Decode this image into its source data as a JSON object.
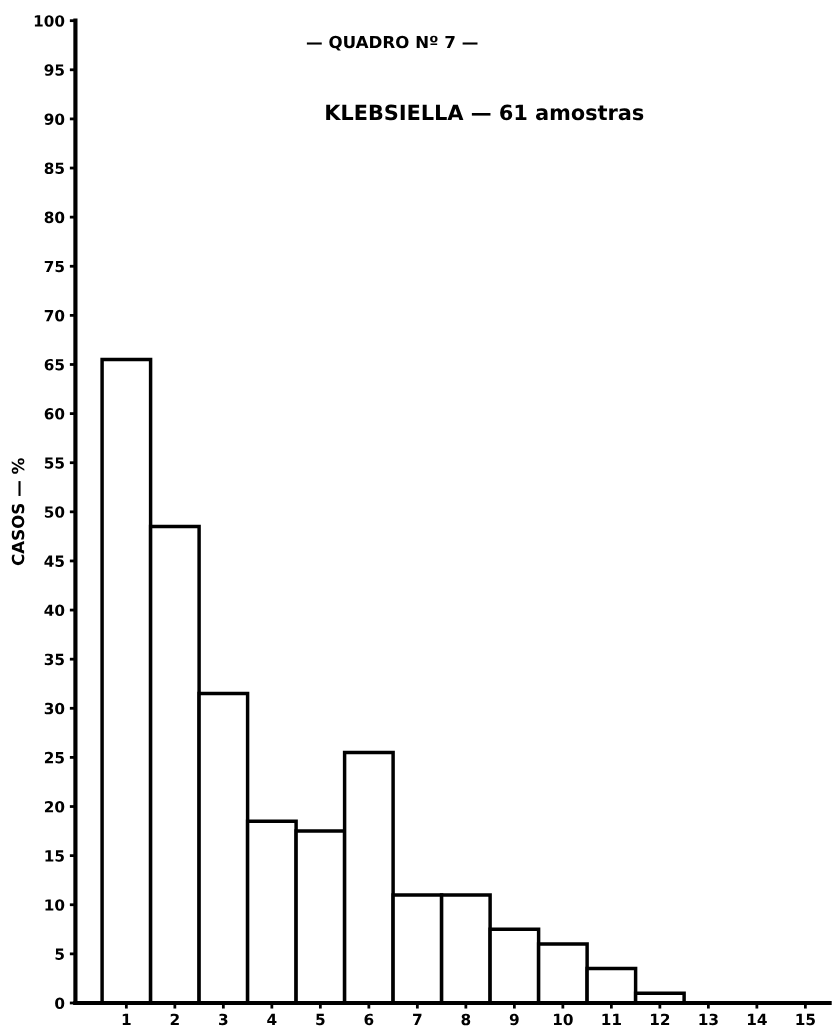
{
  "chart_data": {
    "type": "bar",
    "title": "— QUADRO Nº 7 —",
    "subtitle": "KLEBSIELLA — 61 amostras",
    "ylabel": "CASOS — %",
    "categories": [
      "1",
      "2",
      "3",
      "4",
      "5",
      "6",
      "7",
      "8",
      "9",
      "10",
      "11",
      "12",
      "13",
      "14",
      "15"
    ],
    "values": [
      65.5,
      48.5,
      31.5,
      18.5,
      17.5,
      25.5,
      11,
      11,
      7.5,
      6,
      3.5,
      1,
      0,
      0,
      0
    ],
    "color": "#ffffff",
    "ylim": [
      0,
      100
    ],
    "yticks": [
      0,
      5,
      10,
      15,
      20,
      25,
      30,
      35,
      40,
      45,
      50,
      55,
      60,
      65,
      70,
      75,
      80,
      85,
      90,
      95,
      100
    ],
    "grid": false
  }
}
